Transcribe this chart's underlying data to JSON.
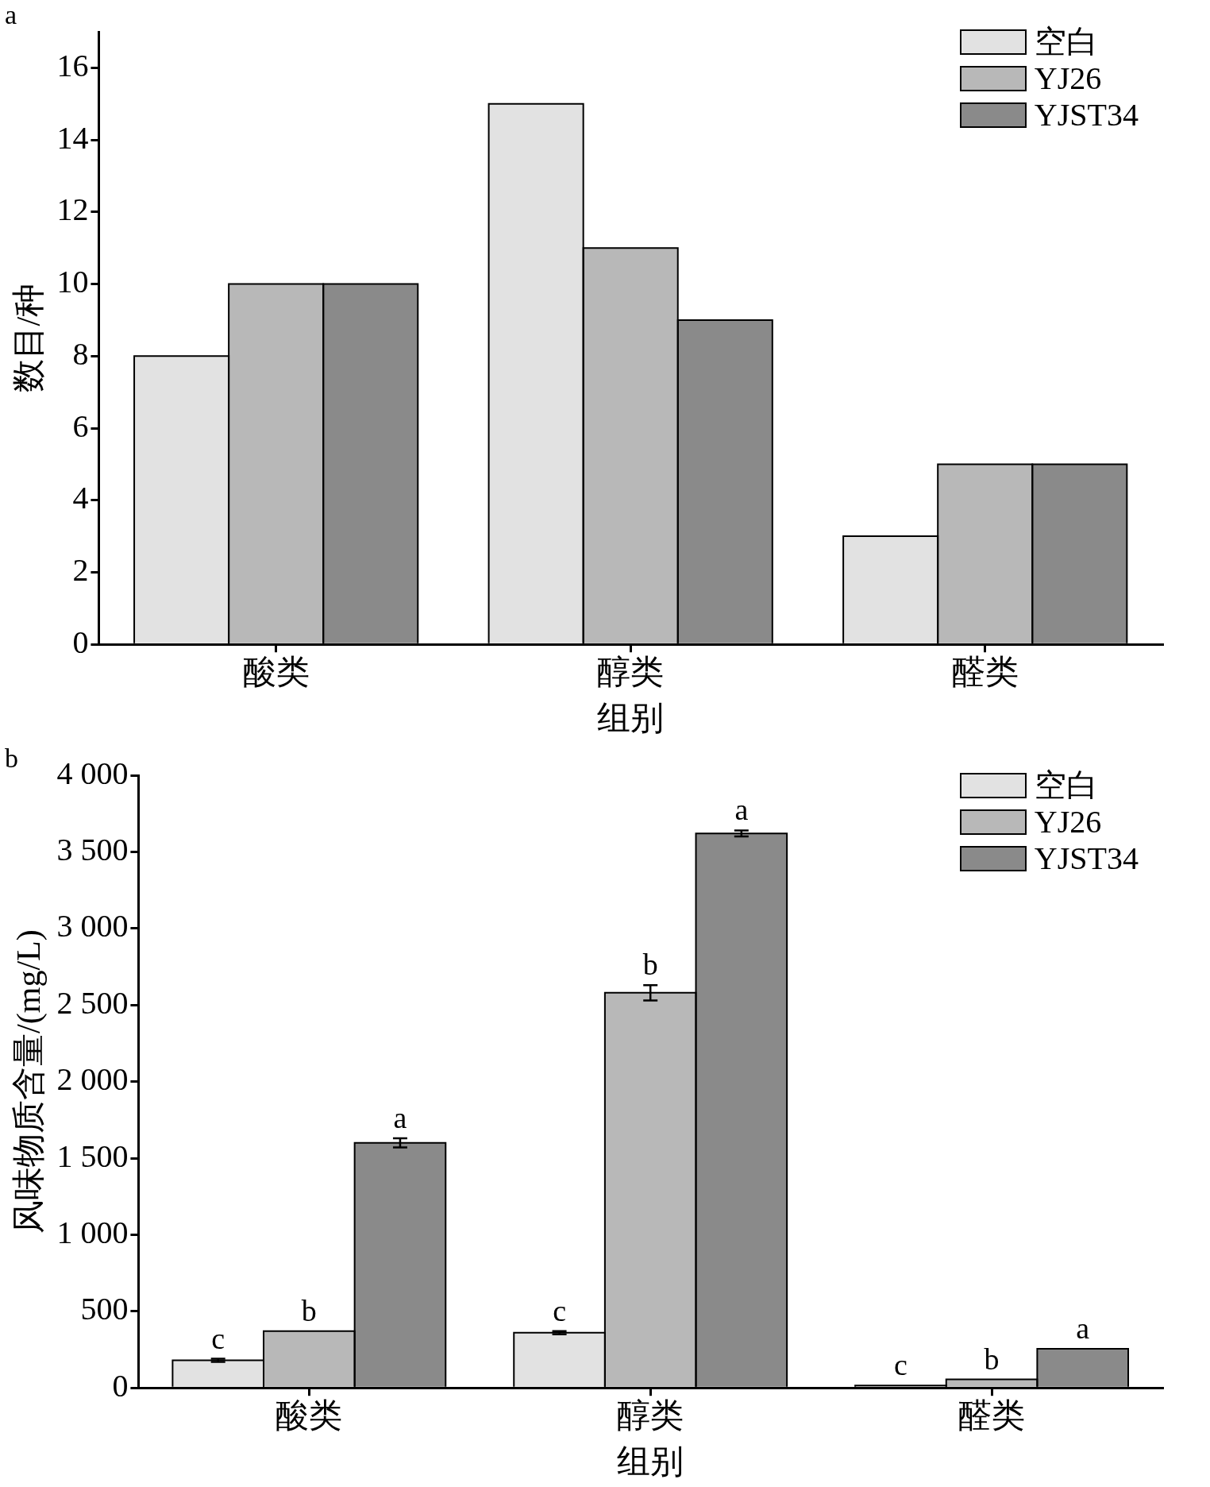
{
  "chart_data": [
    {
      "type": "bar",
      "annotations": [
        "a"
      ],
      "xlabel": "组别",
      "ylabel": "数目/种",
      "categories": [
        "酸类",
        "醇类",
        "醛类"
      ],
      "series": [
        {
          "name": "空白",
          "color": "#e2e2e2",
          "values": [
            8,
            15,
            3
          ]
        },
        {
          "name": "YJ26",
          "color": "#b8b8b8",
          "values": [
            10,
            11,
            5
          ]
        },
        {
          "name": "YJST34",
          "color": "#8a8a8a",
          "values": [
            10,
            9,
            5
          ]
        }
      ],
      "ylim": [
        0,
        17
      ],
      "yticks": [
        0,
        2,
        4,
        6,
        8,
        10,
        12,
        14,
        16
      ],
      "grid": false,
      "legend": "top right"
    },
    {
      "type": "bar",
      "annotations": [
        "b"
      ],
      "xlabel": "组别",
      "ylabel": "风味物质含量/(mg/L)",
      "categories": [
        "酸类",
        "醇类",
        "醛类"
      ],
      "series": [
        {
          "name": "空白",
          "color": "#e2e2e2",
          "values": [
            180,
            360,
            15
          ],
          "errors": [
            10,
            10,
            null
          ],
          "value_labels": [
            "c",
            "c",
            "c"
          ]
        },
        {
          "name": "YJ26",
          "color": "#b8b8b8",
          "values": [
            370,
            2580,
            55
          ],
          "errors": [
            null,
            50,
            null
          ],
          "value_labels": [
            "b",
            "b",
            "b"
          ]
        },
        {
          "name": "YJST34",
          "color": "#8a8a8a",
          "values": [
            1600,
            3620,
            255
          ],
          "errors": [
            30,
            20,
            null
          ],
          "value_labels": [
            "a",
            "a",
            "a"
          ]
        }
      ],
      "ylim": [
        0,
        4000
      ],
      "yticks": [
        0,
        500,
        {
          "value": 1000,
          "label": "1 000"
        },
        {
          "value": 1500,
          "label": "1 500"
        },
        {
          "value": 2000,
          "label": "2 000"
        },
        {
          "value": 2500,
          "label": "2 500"
        },
        {
          "value": 3000,
          "label": "3 000"
        },
        {
          "value": 3500,
          "label": "3 500"
        },
        {
          "value": 4000,
          "label": "4 000"
        }
      ],
      "grid": false,
      "legend": "top right"
    }
  ]
}
